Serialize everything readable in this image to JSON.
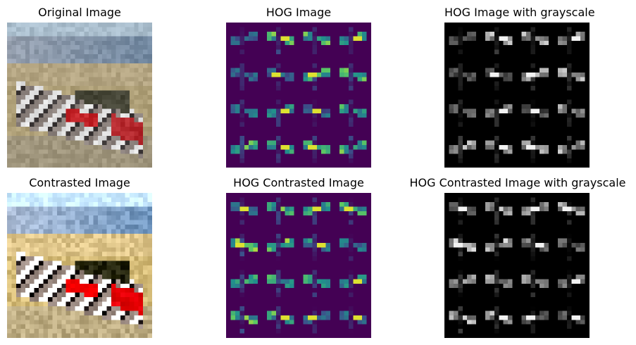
{
  "panels": [
    {
      "id": "p1",
      "title": "Original Image",
      "kind": "photo",
      "variant": "original"
    },
    {
      "id": "p2",
      "title": "HOG Image",
      "kind": "hog",
      "colormap": "viridis",
      "variant": "original"
    },
    {
      "id": "p3",
      "title": "HOG Image with grayscale",
      "kind": "hog",
      "colormap": "gray",
      "variant": "original"
    },
    {
      "id": "p4",
      "title": "Contrasted Image",
      "kind": "photo",
      "variant": "contrasted"
    },
    {
      "id": "p5",
      "title": "HOG Contrasted Image",
      "kind": "hog",
      "colormap": "viridis",
      "variant": "contrasted"
    },
    {
      "id": "p6",
      "title": "HOG Contrasted Image with grayscale",
      "kind": "hog",
      "colormap": "gray",
      "variant": "contrasted"
    }
  ]
}
